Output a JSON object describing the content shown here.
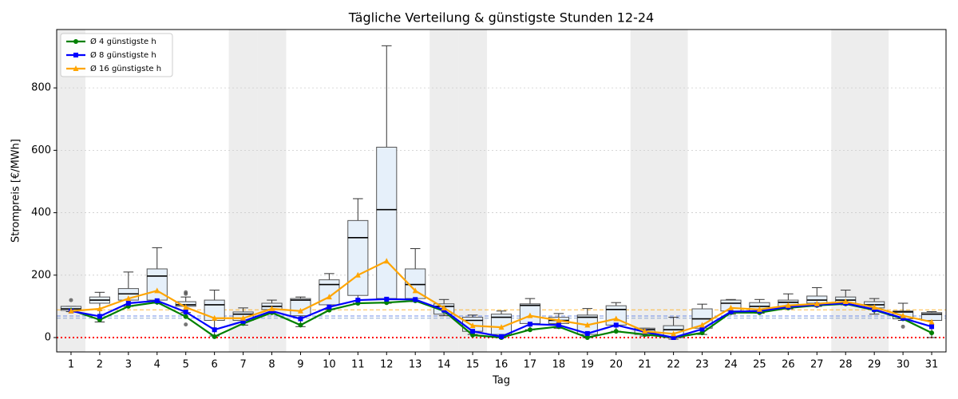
{
  "chart_data": {
    "type": "box_line",
    "title": "Tägliche Verteilung & günstigste Stunden 12-24",
    "x_label": "Tag",
    "y_label": "Strompreis [€/MWh]",
    "x": [
      1,
      2,
      3,
      4,
      5,
      6,
      7,
      8,
      9,
      10,
      11,
      12,
      13,
      14,
      15,
      16,
      17,
      18,
      19,
      20,
      21,
      22,
      23,
      24,
      25,
      26,
      27,
      28,
      29,
      30,
      31
    ],
    "xlim": [
      0.5,
      31.5
    ],
    "xticks": [
      1,
      2,
      3,
      4,
      5,
      6,
      7,
      8,
      9,
      10,
      11,
      12,
      13,
      14,
      15,
      16,
      17,
      18,
      19,
      20,
      21,
      22,
      23,
      24,
      25,
      26,
      27,
      28,
      29,
      30,
      31
    ],
    "ylim": [
      -46,
      987
    ],
    "yticks": [
      0,
      200,
      400,
      600,
      800
    ],
    "grid": true,
    "shaded_days": [
      1,
      7,
      8,
      14,
      15,
      21,
      22,
      28,
      29
    ],
    "box_color": "#e6f0fa",
    "box_stats": {
      "low": [
        83,
        50,
        100,
        110,
        80,
        5,
        40,
        80,
        35,
        90,
        110,
        110,
        115,
        70,
        10,
        0,
        25,
        30,
        0,
        20,
        5,
        -5,
        10,
        75,
        78,
        92,
        100,
        105,
        75,
        55,
        0
      ],
      "q1": [
        87,
        110,
        120,
        120,
        100,
        55,
        55,
        90,
        70,
        105,
        135,
        125,
        125,
        75,
        20,
        10,
        45,
        45,
        10,
        40,
        10,
        0,
        30,
        85,
        85,
        100,
        110,
        110,
        95,
        60,
        55
      ],
      "median": [
        92,
        120,
        140,
        197,
        105,
        105,
        75,
        100,
        120,
        170,
        320,
        410,
        170,
        100,
        55,
        65,
        103,
        55,
        65,
        90,
        25,
        25,
        60,
        110,
        100,
        113,
        120,
        120,
        105,
        82,
        75
      ],
      "q3": [
        100,
        130,
        157,
        220,
        115,
        120,
        82,
        110,
        125,
        185,
        375,
        610,
        220,
        108,
        65,
        75,
        108,
        65,
        72,
        102,
        30,
        38,
        92,
        120,
        112,
        120,
        133,
        130,
        115,
        85,
        80
      ],
      "high": [
        100,
        145,
        210,
        288,
        130,
        152,
        95,
        120,
        130,
        205,
        445,
        935,
        285,
        122,
        72,
        85,
        125,
        77,
        93,
        112,
        30,
        65,
        107,
        122,
        122,
        140,
        160,
        152,
        125,
        110,
        83
      ]
    },
    "outliers": {
      "x": [
        1,
        5,
        5,
        5,
        30
      ],
      "values": [
        120,
        42,
        140,
        145,
        35
      ]
    },
    "series": [
      {
        "name": "Ø 4 günstigste h",
        "color": "#008000",
        "marker": "circle",
        "values": [
          88,
          57,
          100,
          113,
          67,
          3,
          45,
          80,
          40,
          88,
          110,
          112,
          118,
          85,
          8,
          0,
          25,
          35,
          0,
          20,
          10,
          0,
          15,
          80,
          80,
          95,
          103,
          108,
          88,
          60,
          15
        ]
      },
      {
        "name": "Ø 8 günstigste h",
        "color": "#0000ff",
        "marker": "square",
        "values": [
          85,
          68,
          110,
          118,
          82,
          25,
          52,
          85,
          60,
          98,
          120,
          123,
          122,
          88,
          20,
          3,
          43,
          40,
          13,
          40,
          18,
          0,
          27,
          83,
          85,
          98,
          105,
          110,
          90,
          62,
          35
        ]
      },
      {
        "name": "Ø 16 günstigste h",
        "color": "#ffa500",
        "marker": "triangle",
        "values": [
          85,
          92,
          125,
          150,
          97,
          62,
          62,
          92,
          85,
          130,
          200,
          245,
          150,
          95,
          38,
          33,
          70,
          55,
          40,
          60,
          20,
          12,
          40,
          95,
          90,
          103,
          108,
          115,
          97,
          70,
          50
        ]
      }
    ],
    "reference_lines": [
      {
        "value": 89,
        "color": "#ffa500",
        "style": "dashed"
      },
      {
        "value": 69,
        "color": "#4169e1",
        "style": "dashed"
      },
      {
        "value": 62,
        "color": "#6a8fc8",
        "style": "dashed"
      },
      {
        "value": 0,
        "color": "#ff0000",
        "style": "dotted"
      }
    ],
    "legend": "upper left"
  }
}
